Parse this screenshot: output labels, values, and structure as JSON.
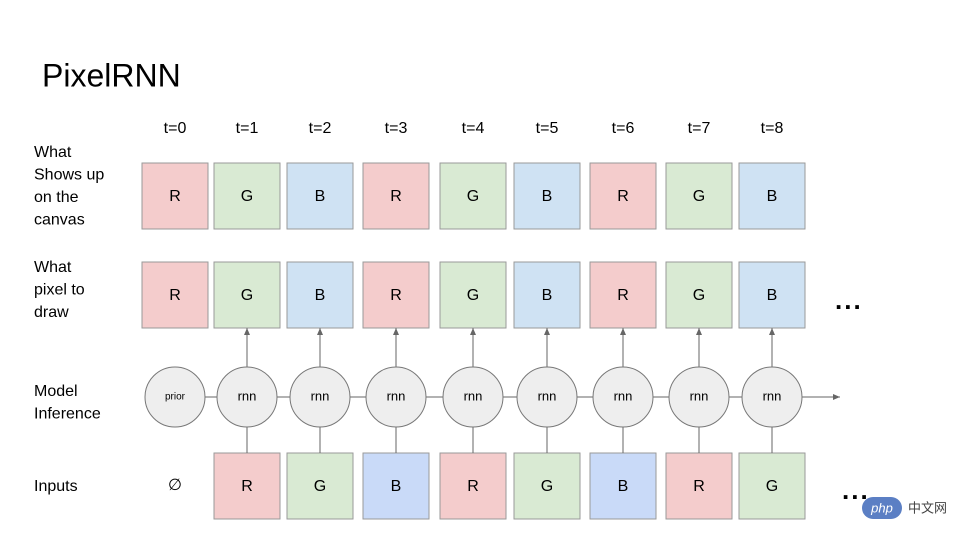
{
  "title": "PixelRNN",
  "timesteps": [
    "t=0",
    "t=1",
    "t=2",
    "t=3",
    "t=4",
    "t=5",
    "t=6",
    "t=7",
    "t=8"
  ],
  "canvas_row": {
    "label": [
      "What",
      "Shows up",
      "on the",
      "canvas"
    ],
    "cells": [
      {
        "text": "R",
        "color": "#f4cccc"
      },
      {
        "text": "G",
        "color": "#d9ead3"
      },
      {
        "text": "B",
        "color": "#cfe2f3"
      },
      {
        "text": "R",
        "color": "#f4cccc"
      },
      {
        "text": "G",
        "color": "#d9ead3"
      },
      {
        "text": "B",
        "color": "#cfe2f3"
      },
      {
        "text": "R",
        "color": "#f4cccc"
      },
      {
        "text": "G",
        "color": "#d9ead3"
      },
      {
        "text": "B",
        "color": "#cfe2f3"
      }
    ]
  },
  "draw_row": {
    "label": [
      "What",
      "pixel to",
      "draw"
    ],
    "cells": [
      {
        "text": "R",
        "color": "#f4cccc"
      },
      {
        "text": "G",
        "color": "#d9ead3"
      },
      {
        "text": "B",
        "color": "#cfe2f3"
      },
      {
        "text": "R",
        "color": "#f4cccc"
      },
      {
        "text": "G",
        "color": "#d9ead3"
      },
      {
        "text": "B",
        "color": "#cfe2f3"
      },
      {
        "text": "R",
        "color": "#f4cccc"
      },
      {
        "text": "G",
        "color": "#d9ead3"
      },
      {
        "text": "B",
        "color": "#cfe2f3"
      }
    ],
    "ellipsis": "..."
  },
  "inference_row": {
    "label": [
      "Model",
      "Inference"
    ],
    "nodes": [
      "prior",
      "rnn",
      "rnn",
      "rnn",
      "rnn",
      "rnn",
      "rnn",
      "rnn",
      "rnn"
    ]
  },
  "inputs_row": {
    "label": [
      "Inputs"
    ],
    "empty": "∅",
    "cells": [
      {
        "text": "R",
        "color": "#f4cccc"
      },
      {
        "text": "G",
        "color": "#d9ead3"
      },
      {
        "text": "B",
        "color": "#c9daf8"
      },
      {
        "text": "R",
        "color": "#f4cccc"
      },
      {
        "text": "G",
        "color": "#d9ead3"
      },
      {
        "text": "B",
        "color": "#c9daf8"
      },
      {
        "text": "R",
        "color": "#f4cccc"
      },
      {
        "text": "G",
        "color": "#d9ead3"
      }
    ],
    "ellipsis": "..."
  },
  "watermark": {
    "badge": "php",
    "text": "中文网"
  }
}
